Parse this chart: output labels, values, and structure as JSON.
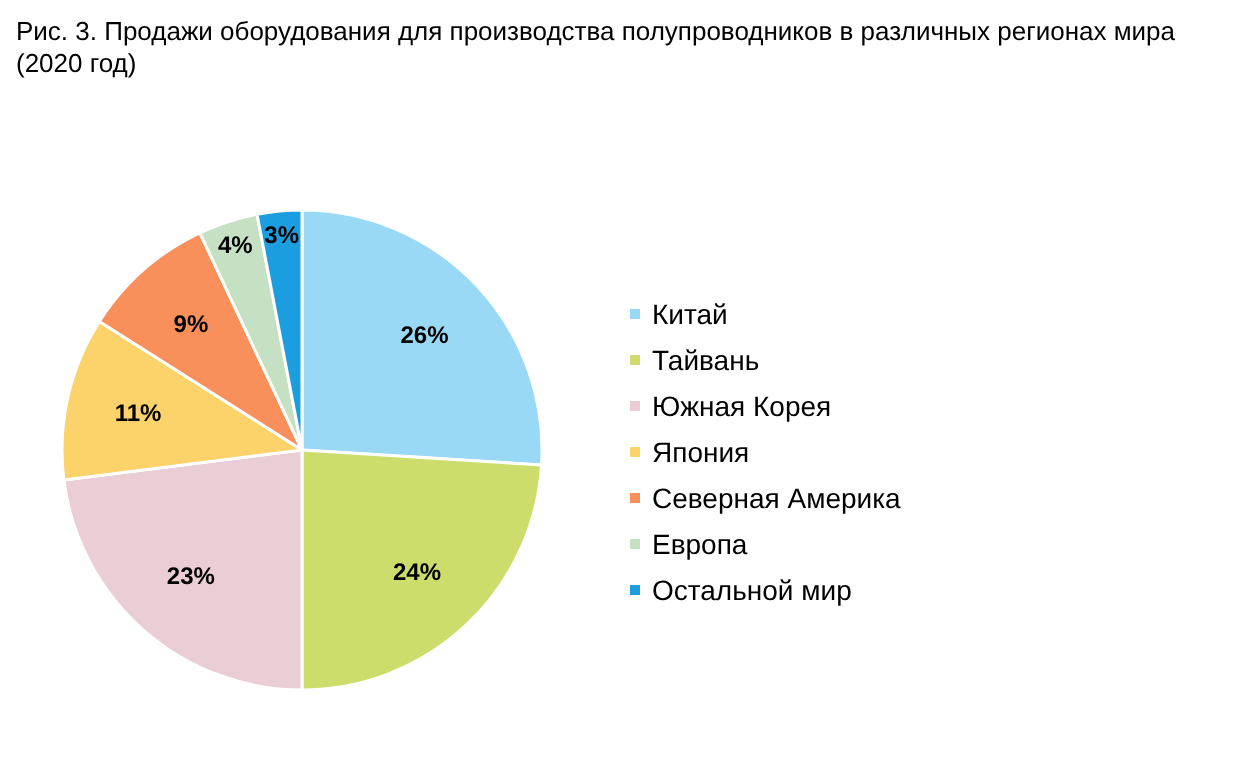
{
  "chart_data": {
    "type": "pie",
    "title": "Рис. 3. Продажи оборудования для производства полупроводников в различных регионах мира (2020 год)",
    "categories": [
      "Китай",
      "Тайвань",
      "Южная Корея",
      "Япония",
      "Северная Америка",
      "Европа",
      "Остальной мир"
    ],
    "values": [
      26,
      24,
      23,
      11,
      9,
      4,
      3
    ],
    "value_labels": [
      "26%",
      "24%",
      "23%",
      "11%",
      "9%",
      "4%",
      "3%"
    ],
    "colors": [
      "#99d9f5",
      "#cddc6a",
      "#ebcdd5",
      "#fcd36b",
      "#f98f5a",
      "#c6e0c4",
      "#1a9ee0"
    ],
    "legend": "right"
  }
}
